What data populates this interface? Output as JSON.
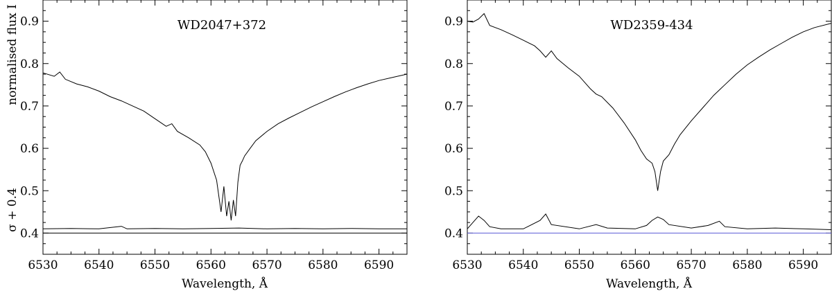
{
  "chart_data": [
    {
      "type": "line",
      "title": "WD2047+372",
      "xlabel": "Wavelength, Å",
      "ylabel": "normalised flux I",
      "ylabel2": "σ + 0.4",
      "xlim": [
        6530,
        6595
      ],
      "ylim": [
        0.35,
        0.95
      ],
      "xticks": [
        6530,
        6540,
        6550,
        6560,
        6570,
        6580,
        6590
      ],
      "yticks": [
        0.4,
        0.5,
        0.6,
        0.7,
        0.8,
        0.9
      ],
      "baseline": 0.4,
      "baseline_color": "#000000",
      "series": [
        {
          "x": [
            6530,
            6532,
            6533,
            6534,
            6536,
            6538,
            6540,
            6542,
            6544,
            6546,
            6548,
            6550,
            6552,
            6553,
            6554,
            6556,
            6558,
            6559,
            6560,
            6561,
            6561.8,
            6562.3,
            6562.8,
            6563.2,
            6563.6,
            6564.0,
            6564.4,
            6564.8,
            6565.2,
            6565.6,
            6566,
            6567,
            6568,
            6570,
            6572,
            6574,
            6576,
            6578,
            6580,
            6582,
            6584,
            6586,
            6588,
            6590,
            6592,
            6595
          ],
          "y": [
            0.778,
            0.77,
            0.78,
            0.763,
            0.752,
            0.745,
            0.735,
            0.722,
            0.712,
            0.7,
            0.688,
            0.67,
            0.652,
            0.658,
            0.64,
            0.625,
            0.608,
            0.592,
            0.565,
            0.525,
            0.45,
            0.51,
            0.44,
            0.475,
            0.43,
            0.478,
            0.44,
            0.52,
            0.56,
            0.57,
            0.582,
            0.6,
            0.618,
            0.64,
            0.658,
            0.672,
            0.685,
            0.698,
            0.71,
            0.722,
            0.733,
            0.743,
            0.752,
            0.76,
            0.766,
            0.775
          ]
        },
        {
          "x": [
            6530,
            6535,
            6540,
            6544,
            6545,
            6550,
            6555,
            6560,
            6565,
            6570,
            6575,
            6580,
            6585,
            6590,
            6595
          ],
          "y": [
            0.41,
            0.411,
            0.41,
            0.416,
            0.41,
            0.411,
            0.41,
            0.411,
            0.412,
            0.41,
            0.411,
            0.41,
            0.411,
            0.41,
            0.41
          ]
        }
      ]
    },
    {
      "type": "line",
      "title": "WD2359-434",
      "xlabel": "Wavelength, Å",
      "ylabel": "",
      "xlim": [
        6530,
        6595
      ],
      "ylim": [
        0.35,
        0.95
      ],
      "xticks": [
        6530,
        6540,
        6550,
        6560,
        6570,
        6580,
        6590
      ],
      "yticks": [
        0.4,
        0.5,
        0.6,
        0.7,
        0.8,
        0.9
      ],
      "baseline": 0.4,
      "baseline_color": "#5a5ad6",
      "series": [
        {
          "x": [
            6530,
            6531,
            6532,
            6533,
            6534,
            6536,
            6538,
            6540,
            6542,
            6543,
            6544,
            6545,
            6546,
            6548,
            6550,
            6552,
            6553,
            6554,
            6556,
            6558,
            6560,
            6561,
            6562,
            6563,
            6563.5,
            6564,
            6564.5,
            6565,
            6566,
            6567,
            6568,
            6570,
            6572,
            6574,
            6576,
            6578,
            6580,
            6582,
            6584,
            6586,
            6588,
            6590,
            6592,
            6595
          ],
          "y": [
            0.9,
            0.898,
            0.905,
            0.918,
            0.89,
            0.88,
            0.868,
            0.855,
            0.842,
            0.83,
            0.815,
            0.83,
            0.812,
            0.79,
            0.77,
            0.74,
            0.728,
            0.722,
            0.695,
            0.66,
            0.62,
            0.595,
            0.575,
            0.565,
            0.545,
            0.5,
            0.545,
            0.57,
            0.585,
            0.61,
            0.632,
            0.665,
            0.695,
            0.725,
            0.75,
            0.775,
            0.797,
            0.815,
            0.832,
            0.847,
            0.862,
            0.875,
            0.885,
            0.895
          ]
        },
        {
          "x": [
            6530,
            6531,
            6532,
            6533,
            6534,
            6536,
            6540,
            6543,
            6544,
            6545,
            6550,
            6553,
            6555,
            6560,
            6562,
            6563,
            6564,
            6565,
            6566,
            6570,
            6573,
            6575,
            6576,
            6580,
            6585,
            6590,
            6595
          ],
          "y": [
            0.41,
            0.425,
            0.44,
            0.43,
            0.415,
            0.41,
            0.41,
            0.43,
            0.445,
            0.42,
            0.41,
            0.42,
            0.412,
            0.41,
            0.418,
            0.43,
            0.438,
            0.432,
            0.42,
            0.412,
            0.418,
            0.428,
            0.415,
            0.41,
            0.412,
            0.41,
            0.408
          ]
        }
      ]
    }
  ]
}
